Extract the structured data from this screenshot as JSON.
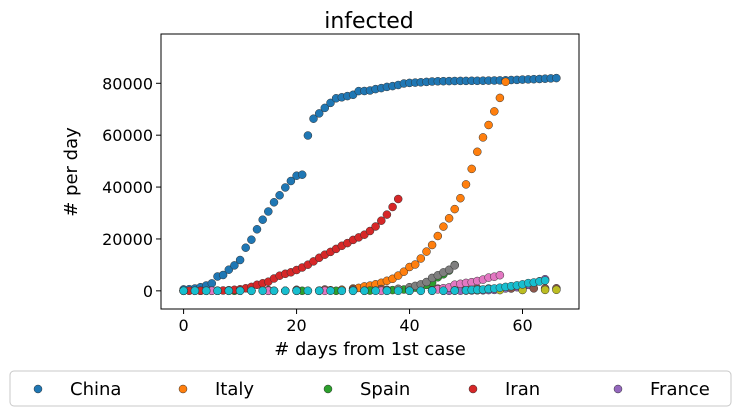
{
  "chart_data": {
    "type": "scatter",
    "title": "infected",
    "xlabel": "# days from 1st case",
    "ylabel": "# per day",
    "xlim": [
      -4,
      70
    ],
    "ylim": [
      -7000,
      99000
    ],
    "xticks": [
      0,
      20,
      40,
      60
    ],
    "yticks": [
      0,
      20000,
      40000,
      60000,
      80000
    ],
    "xtick_labels": [
      "0",
      "20",
      "40",
      "60"
    ],
    "ytick_labels": [
      "0",
      "20000",
      "40000",
      "60000",
      "80000"
    ],
    "grid": false,
    "legend_position": "bottom",
    "series": [
      {
        "name": "China",
        "color": "#1f77b4",
        "x": [
          0,
          1,
          2,
          3,
          4,
          5,
          6,
          7,
          8,
          9,
          10,
          11,
          12,
          13,
          14,
          15,
          16,
          17,
          18,
          19,
          20,
          21,
          22,
          23,
          24,
          25,
          26,
          27,
          28,
          29,
          30,
          31,
          32,
          33,
          34,
          35,
          36,
          37,
          38,
          39,
          40,
          41,
          42,
          43,
          44,
          45,
          46,
          47,
          48,
          49,
          50,
          51,
          52,
          53,
          54,
          55,
          56,
          57,
          58,
          59,
          60,
          61,
          62,
          63,
          64,
          65,
          66
        ],
        "y": [
          548,
          643,
          920,
          1406,
          2075,
          2877,
          5509,
          6087,
          8141,
          9802,
          11891,
          16630,
          19716,
          23707,
          27440,
          30587,
          34110,
          36814,
          39829,
          42354,
          44386,
          44759,
          59895,
          66358,
          68413,
          70513,
          72434,
          74211,
          74619,
          75077,
          75550,
          77001,
          77022,
          77241,
          77754,
          78166,
          78600,
          78928,
          79356,
          79932,
          80136,
          80261,
          80386,
          80537,
          80690,
          80770,
          80823,
          80860,
          80887,
          80921,
          80932,
          80945,
          80977,
          81003,
          81033,
          81058,
          81102,
          81156,
          81250,
          81305,
          81435,
          81498,
          81591,
          81661,
          81782,
          81897,
          81999
        ]
      },
      {
        "name": "Italy",
        "color": "#ff7f0e",
        "x": [
          0,
          2,
          4,
          6,
          8,
          10,
          12,
          14,
          16,
          18,
          20,
          22,
          24,
          26,
          28,
          30,
          31,
          32,
          33,
          34,
          35,
          36,
          37,
          38,
          39,
          40,
          41,
          42,
          43,
          44,
          45,
          46,
          47,
          48,
          49,
          50,
          51,
          52,
          53,
          54,
          55,
          56,
          57
        ],
        "y": [
          2,
          3,
          3,
          3,
          3,
          3,
          3,
          3,
          3,
          3,
          3,
          20,
          79,
          229,
          453,
          888,
          1128,
          1694,
          2036,
          2502,
          3089,
          3858,
          4636,
          5883,
          7375,
          9172,
          10149,
          12462,
          15113,
          17660,
          21157,
          24747,
          27980,
          31506,
          35713,
          41035,
          47021,
          53578,
          59138,
          63927,
          69176,
          74386,
          80589
        ]
      },
      {
        "name": "Spain",
        "color": "#2ca02c",
        "x": [
          0,
          3,
          6,
          9,
          12,
          15,
          18,
          21,
          24,
          27,
          30,
          32,
          33,
          34,
          35,
          36,
          37,
          38,
          39,
          40,
          41,
          42,
          43,
          44,
          45,
          46,
          47,
          48
        ],
        "y": [
          1,
          1,
          2,
          2,
          2,
          2,
          2,
          2,
          2,
          2,
          2,
          45,
          84,
          120,
          165,
          228,
          282,
          401,
          525,
          674,
          1231,
          1695,
          2277,
          3146,
          5232,
          6391,
          7798,
          9942
        ]
      },
      {
        "name": "Iran",
        "color": "#d62728",
        "x": [
          0,
          1,
          2,
          3,
          4,
          5,
          6,
          7,
          8,
          9,
          10,
          11,
          12,
          13,
          14,
          15,
          16,
          17,
          18,
          19,
          20,
          21,
          22,
          23,
          24,
          25,
          26,
          27,
          28,
          29,
          30,
          31,
          32,
          33,
          34,
          35,
          36,
          37,
          38
        ],
        "y": [
          2,
          5,
          18,
          28,
          43,
          61,
          95,
          139,
          245,
          388,
          593,
          978,
          1501,
          2336,
          2922,
          3513,
          4747,
          5823,
          6566,
          7161,
          8042,
          9000,
          10075,
          11364,
          12729,
          13938,
          14991,
          16169,
          17361,
          18407,
          19644,
          20610,
          21638,
          23049,
          24811,
          27017,
          29406,
          32332,
          35408
        ]
      },
      {
        "name": "France",
        "color": "#9467bd",
        "x": [
          0,
          4,
          8,
          12,
          16,
          20,
          24,
          28,
          32,
          36,
          40,
          42,
          44,
          46,
          47,
          48,
          49,
          50,
          51,
          52,
          53,
          54,
          55,
          56,
          57,
          58,
          59,
          60,
          61,
          62,
          63,
          64
        ],
        "y": [
          3,
          6,
          6,
          11,
          12,
          12,
          12,
          12,
          12,
          12,
          12,
          12,
          12,
          12,
          18,
          38,
          57,
          100,
          130,
          191,
          204,
          285,
          377,
          653,
          949,
          1126,
          1412,
          1784,
          2281,
          2876,
          3661,
          4499
        ]
      },
      {
        "name": "",
        "color": "#8c564b",
        "x": [
          0,
          5,
          10,
          15,
          20,
          25,
          30,
          35,
          40,
          45,
          50,
          52,
          54,
          56,
          58,
          60,
          62,
          64,
          66
        ],
        "y": [
          1,
          40,
          150,
          290,
          400,
          500,
          600,
          700,
          800,
          850,
          880,
          890,
          900,
          910,
          920,
          930,
          940,
          950,
          960
        ]
      },
      {
        "name": "",
        "color": "#e377c2",
        "x": [
          0,
          5,
          10,
          15,
          20,
          25,
          30,
          35,
          40,
          44,
          45,
          46,
          47,
          48,
          49,
          50,
          51,
          52,
          53,
          54,
          55,
          56
        ],
        "y": [
          1,
          2,
          2,
          5,
          10,
          12,
          15,
          20,
          25,
          262,
          545,
          1018,
          1309,
          2369,
          2725,
          3042,
          3346,
          3799,
          4351,
          5103,
          5468,
          6016
        ]
      },
      {
        "name": "",
        "color": "#7f7f7f",
        "x": [
          0,
          6,
          12,
          18,
          24,
          30,
          36,
          38,
          40,
          41,
          42,
          43,
          44,
          45,
          46,
          47,
          48
        ],
        "y": [
          2,
          5,
          10,
          20,
          40,
          150,
          400,
          800,
          1400,
          1900,
          2500,
          3400,
          5000,
          6000,
          7100,
          8100,
          9800
        ]
      },
      {
        "name": "",
        "color": "#bcbd22",
        "x": [
          0,
          4,
          8,
          12,
          16,
          20,
          24,
          28,
          32,
          36,
          40,
          44,
          48,
          52,
          56,
          60,
          64,
          66
        ],
        "y": [
          1,
          5,
          10,
          20,
          30,
          40,
          60,
          80,
          100,
          120,
          150,
          180,
          220,
          260,
          300,
          340,
          380,
          400
        ]
      },
      {
        "name": "",
        "color": "#17becf",
        "x": [
          0,
          2,
          4,
          6,
          8,
          10,
          12,
          14,
          16,
          18,
          20,
          22,
          24,
          26,
          28,
          30,
          32,
          34,
          36,
          38,
          40,
          42,
          44,
          46,
          48,
          50,
          51,
          52,
          53,
          54,
          55,
          56,
          57,
          58,
          59,
          60,
          61,
          62,
          63,
          64
        ],
        "y": [
          1,
          1,
          1,
          1,
          1,
          1,
          1,
          1,
          1,
          1,
          1,
          1,
          1,
          1,
          1,
          1,
          1,
          1,
          2,
          4,
          10,
          20,
          40,
          60,
          90,
          210,
          360,
          400,
          500,
          700,
          900,
          1200,
          1500,
          1800,
          2100,
          2500,
          3000,
          3200,
          3600,
          4000
        ]
      }
    ]
  }
}
